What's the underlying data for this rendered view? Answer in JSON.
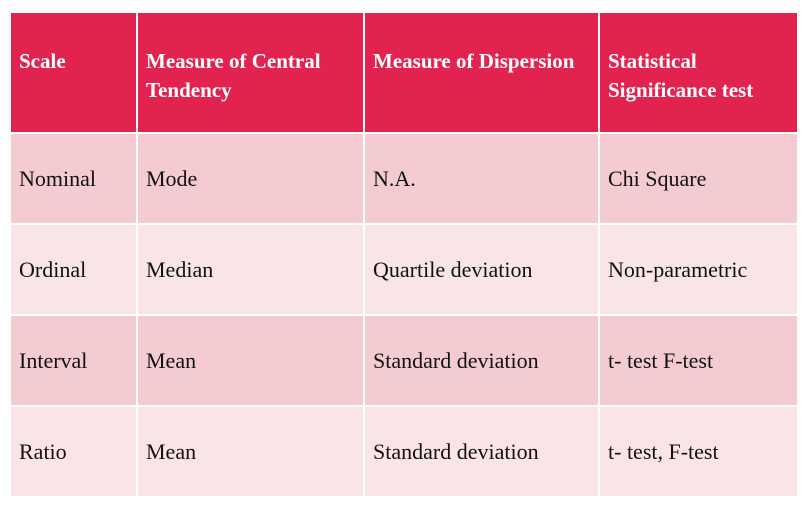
{
  "table": {
    "header": [
      "Scale",
      "Measure of Central Tendency",
      "Measure of Dispersion",
      "Statistical Significance test"
    ],
    "rows": [
      [
        "Nominal",
        "Mode",
        "N.A.",
        "Chi Square"
      ],
      [
        "Ordinal",
        "Median",
        "Quartile deviation",
        "Non-parametric"
      ],
      [
        "Interval",
        "Mean",
        "Standard deviation",
        "t- test F-test"
      ],
      [
        "Ratio",
        "Mean",
        "Standard deviation",
        "t- test, F-test"
      ]
    ]
  }
}
